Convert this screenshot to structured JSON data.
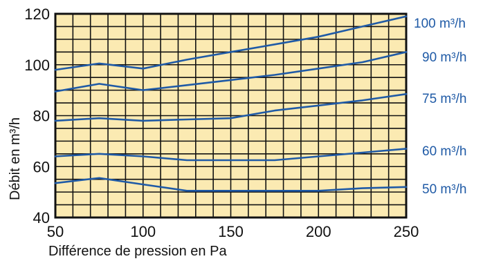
{
  "chart_data": {
    "type": "line",
    "title": "",
    "xlabel": "Différence de pression en Pa",
    "ylabel": "Débit en m³/h",
    "xlim": [
      50,
      250
    ],
    "ylim": [
      40,
      120
    ],
    "x_ticks": [
      50,
      100,
      150,
      200,
      250
    ],
    "y_ticks": [
      40,
      60,
      80,
      100,
      120
    ],
    "x_minor_step": 10,
    "y_minor_step": 5,
    "grid": true,
    "legend": "right",
    "colors": {
      "background": "#fbeab2",
      "grid": "#111111",
      "line": "#1f5aa6",
      "label": "#1f5aa6"
    },
    "series": [
      {
        "name": "100 m³/h",
        "x": [
          50,
          75,
          100,
          125,
          150,
          175,
          200,
          225,
          250
        ],
        "y": [
          98,
          100.5,
          98.5,
          102,
          105,
          108,
          111,
          115,
          119
        ]
      },
      {
        "name": "90 m³/h",
        "x": [
          50,
          75,
          100,
          125,
          150,
          175,
          200,
          225,
          250
        ],
        "y": [
          89.5,
          92.5,
          90,
          92,
          94,
          96,
          98.5,
          101,
          105
        ]
      },
      {
        "name": "75 m³/h",
        "x": [
          50,
          75,
          100,
          125,
          150,
          175,
          200,
          225,
          250
        ],
        "y": [
          78,
          79,
          78,
          78.5,
          79,
          82,
          84,
          86,
          88.5
        ]
      },
      {
        "name": "60 m³/h",
        "x": [
          50,
          75,
          100,
          125,
          150,
          175,
          200,
          225,
          250
        ],
        "y": [
          64,
          65,
          64,
          62.5,
          62.5,
          62.5,
          64,
          65.5,
          67
        ]
      },
      {
        "name": "50 m³/h",
        "x": [
          50,
          75,
          100,
          125,
          150,
          175,
          200,
          225,
          250
        ],
        "y": [
          53.5,
          55.5,
          53,
          50.5,
          50.5,
          50.5,
          50.5,
          51.5,
          52
        ]
      }
    ]
  }
}
